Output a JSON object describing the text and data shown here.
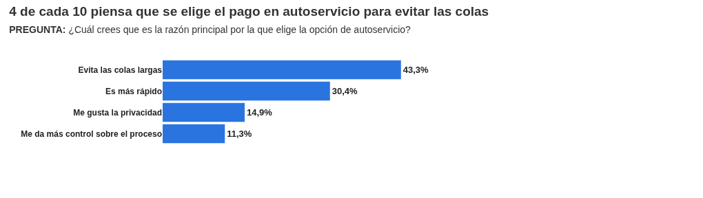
{
  "chart_data": {
    "type": "bar",
    "orientation": "horizontal",
    "title": "4 de cada 10 piensa que se elige el pago en autoservicio para evitar las colas",
    "subtitle": "PREGUNTA: ¿Cuál crees que es la razón principal por la que elige la opción de autoservicio?",
    "categories": [
      "Evita las colas largas",
      "Es más rápido",
      "Me gusta la privacidad",
      "Me da más control sobre el proceso"
    ],
    "values": [
      43.3,
      30.4,
      14.9,
      11.3
    ],
    "value_labels": [
      "43,3%",
      "30,4%",
      "14,9%",
      "11,3%"
    ],
    "color": "#2a74e0"
  }
}
